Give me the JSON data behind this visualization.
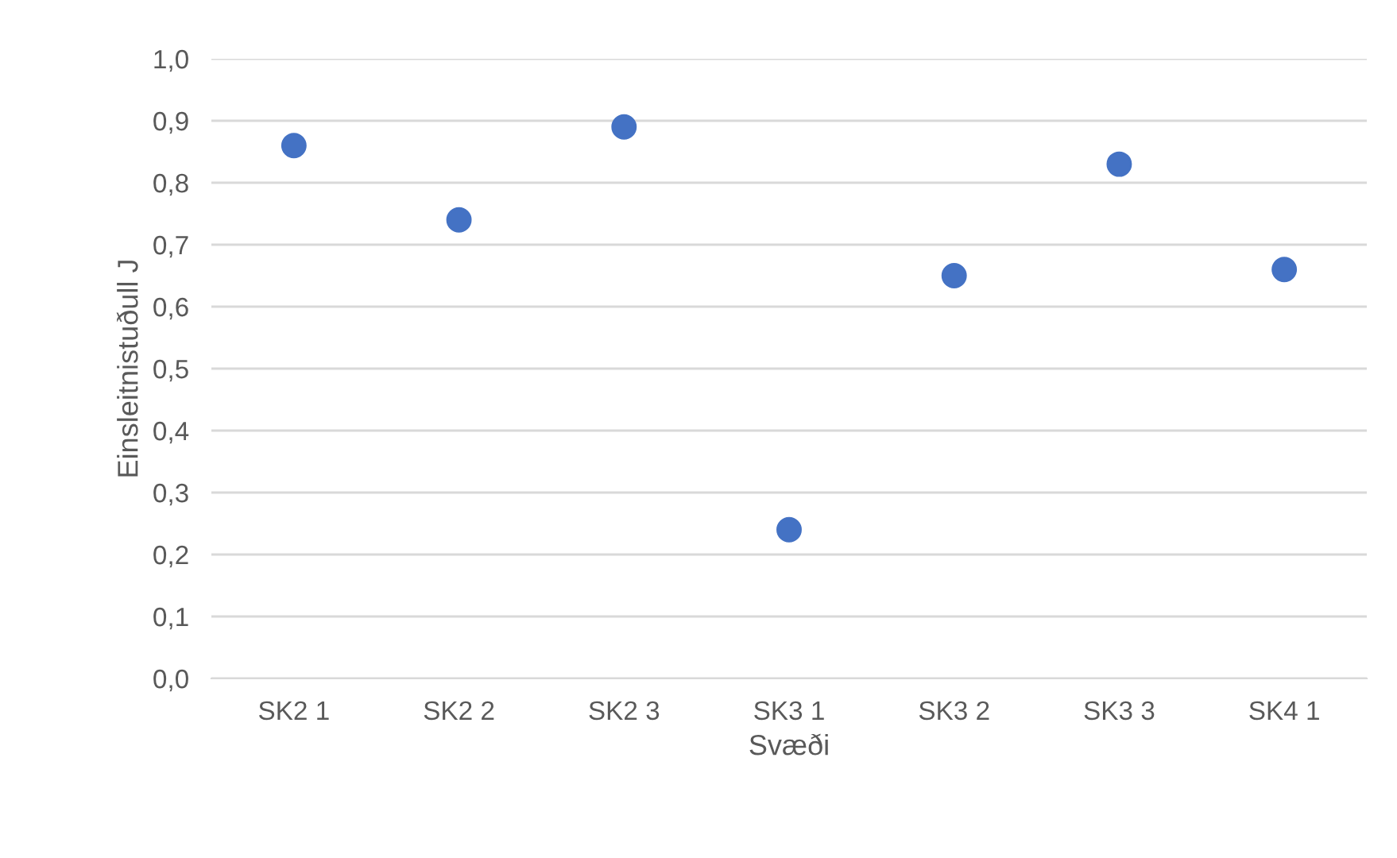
{
  "chart_data": {
    "type": "scatter",
    "xlabel": "Svæði",
    "ylabel": "Einsleitnistuðull J",
    "categories": [
      "SK2 1",
      "SK2 2",
      "SK2 3",
      "SK3 1",
      "SK3 2",
      "SK3 3",
      "SK4 1"
    ],
    "values": [
      0.86,
      0.74,
      0.89,
      0.24,
      0.65,
      0.83,
      0.66
    ],
    "color": "#4472c4",
    "marker": "circle",
    "grid": "y",
    "ylim": [
      0,
      1
    ],
    "yticks": [
      {
        "value": 0,
        "label": "0,0"
      },
      {
        "value": 0.1,
        "label": "0,1"
      },
      {
        "value": 0.2,
        "label": "0,2"
      },
      {
        "value": 0.3,
        "label": "0,3"
      },
      {
        "value": 0.4,
        "label": "0,4"
      },
      {
        "value": 0.5,
        "label": "0,5"
      },
      {
        "value": 0.6,
        "label": "0,6"
      },
      {
        "value": 0.7,
        "label": "0,7"
      },
      {
        "value": 0.8,
        "label": "0,8"
      },
      {
        "value": 0.9,
        "label": "0,9"
      },
      {
        "value": 1.0,
        "label": "1,0"
      }
    ]
  }
}
